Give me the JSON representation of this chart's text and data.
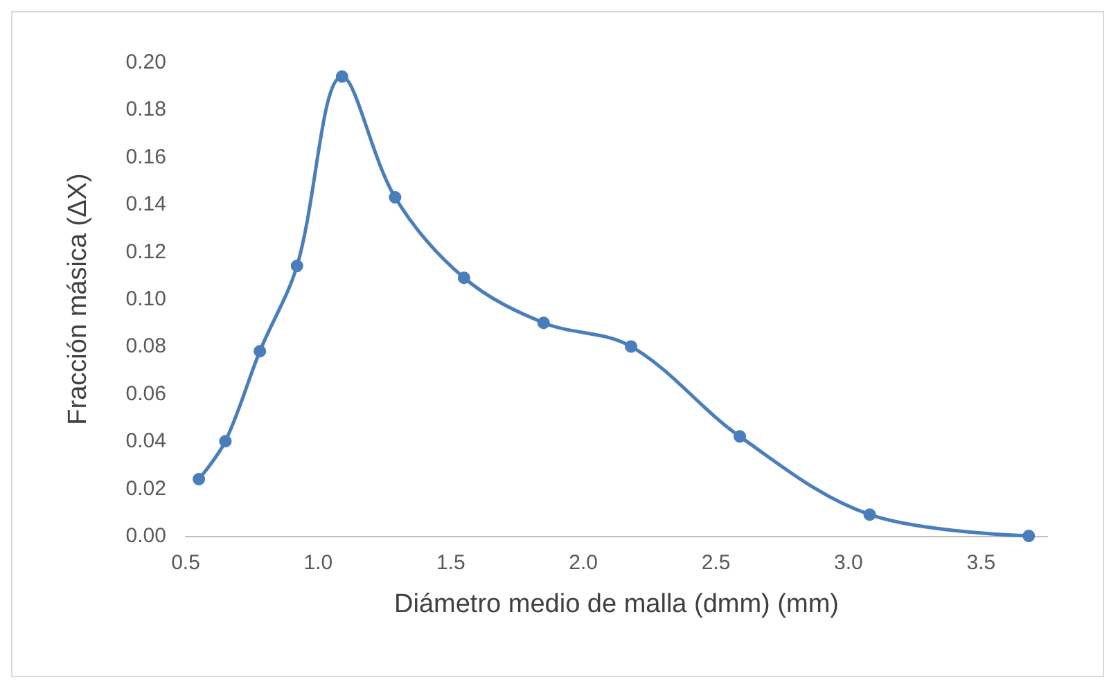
{
  "chart_data": {
    "type": "line",
    "xlabel": "Diámetro medio de malla (dmm) (mm)",
    "ylabel": "Fracción másica (ΔX)",
    "x": [
      0.55,
      0.65,
      0.78,
      0.92,
      1.09,
      1.29,
      1.55,
      1.85,
      2.18,
      2.59,
      3.08,
      3.68
    ],
    "series": [
      {
        "color": "#4a7ebb",
        "values": [
          0.024,
          0.04,
          0.078,
          0.114,
          0.194,
          0.143,
          0.109,
          0.09,
          0.08,
          0.042,
          0.009,
          0.0
        ]
      }
    ],
    "xlim": [
      0.5,
      3.75
    ],
    "xticks": [
      {
        "value": 0.5,
        "label": "0.5"
      },
      {
        "value": 1,
        "label": "1.0"
      },
      {
        "value": 1.5,
        "label": "1.5"
      },
      {
        "value": 2,
        "label": "2.0"
      },
      {
        "value": 2.5,
        "label": "2.5"
      },
      {
        "value": 3,
        "label": "3.0"
      },
      {
        "value": 3.5,
        "label": "3.5"
      }
    ],
    "ylim": [
      0,
      0.2
    ],
    "yticks": [
      {
        "value": 0,
        "label": "0.00"
      },
      {
        "value": 0.02,
        "label": "0.02"
      },
      {
        "value": 0.04,
        "label": "0.04"
      },
      {
        "value": 0.06,
        "label": "0.06"
      },
      {
        "value": 0.08,
        "label": "0.08"
      },
      {
        "value": 0.1,
        "label": "0.10"
      },
      {
        "value": 0.12,
        "label": "0.12"
      },
      {
        "value": 0.14,
        "label": "0.14"
      },
      {
        "value": 0.16,
        "label": "0.16"
      },
      {
        "value": 0.18,
        "label": "0.18"
      },
      {
        "value": 0.2,
        "label": "0.20"
      }
    ],
    "grid": false,
    "marker": "circle",
    "line_style": "solid"
  }
}
